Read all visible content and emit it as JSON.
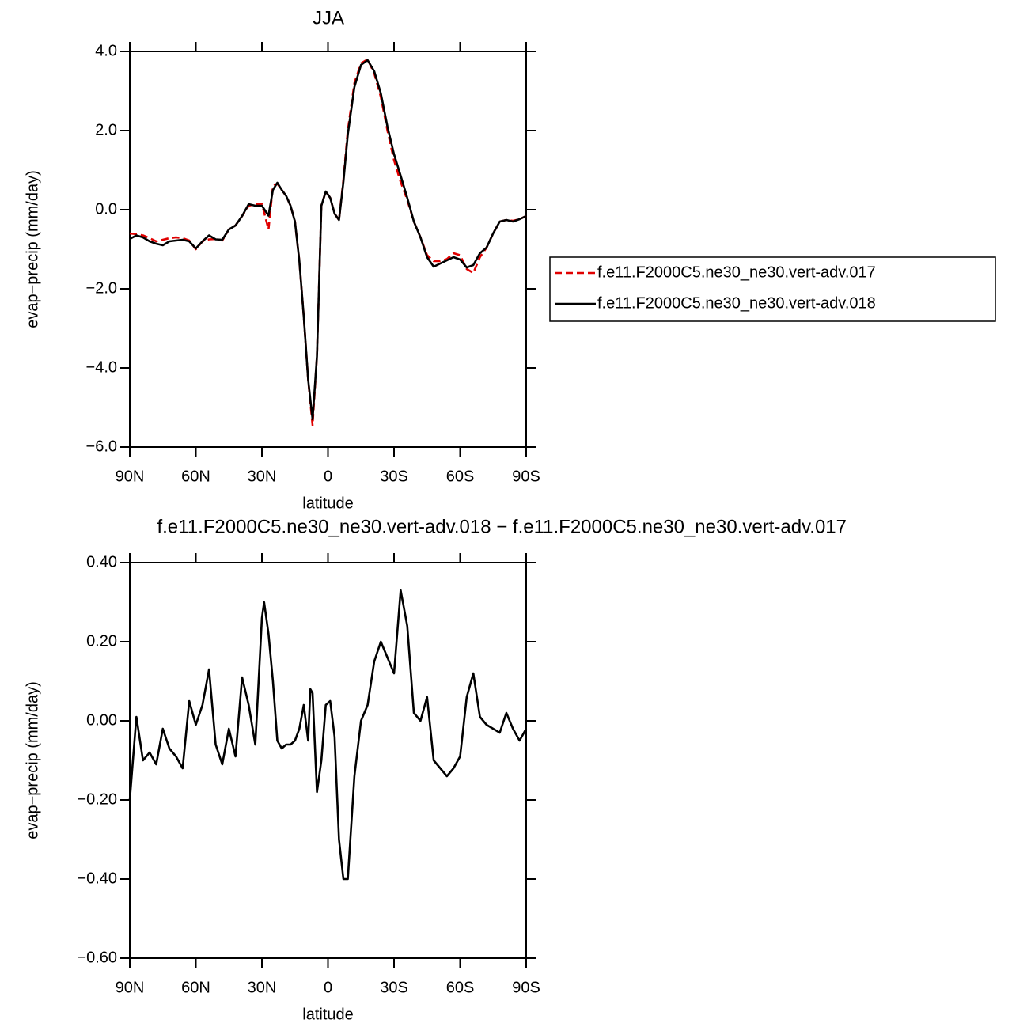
{
  "chart_data": [
    {
      "type": "line",
      "title": "JJA",
      "xlabel": "latitude",
      "ylabel": "evap−precip (mm/day)",
      "x": [
        90,
        87,
        84,
        81,
        78,
        75,
        72,
        69,
        66,
        63,
        60,
        57,
        54,
        51,
        48,
        45,
        42,
        39,
        36,
        33,
        30,
        27,
        25,
        23,
        21,
        19,
        17,
        15,
        13,
        11,
        9,
        7,
        5,
        3,
        1,
        -1,
        -3,
        -5,
        -7,
        -9,
        -12,
        -15,
        -18,
        -21,
        -24,
        -27,
        -30,
        -33,
        -36,
        -39,
        -42,
        -45,
        -48,
        -51,
        -54,
        -57,
        -60,
        -63,
        -66,
        -69,
        -72,
        -75,
        -78,
        -81,
        -84,
        -87,
        -90
      ],
      "xlim": [
        90,
        -90
      ],
      "xticks": [
        {
          "value": 90,
          "label": "90N"
        },
        {
          "value": 60,
          "label": "60N"
        },
        {
          "value": 30,
          "label": "30N"
        },
        0,
        {
          "value": -30,
          "label": "30S"
        },
        {
          "value": -60,
          "label": "60S"
        },
        {
          "value": -90,
          "label": "90S"
        }
      ],
      "ylim": [
        -6,
        4
      ],
      "yticks": [
        {
          "value": -6,
          "label": "−6.0"
        },
        {
          "value": -4,
          "label": "−4.0"
        },
        {
          "value": -2,
          "label": "−2.0"
        },
        {
          "value": 0,
          "label": "0.0"
        },
        {
          "value": 2,
          "label": "2.0"
        },
        {
          "value": 4,
          "label": "4.0"
        }
      ],
      "legend": "right",
      "series": [
        {
          "name": "f.e11.F2000C5.ne30_ne30.vert-adv.017",
          "color": "#e00000",
          "dash": true,
          "values": [
            -0.6,
            -0.62,
            -0.65,
            -0.72,
            -0.8,
            -0.76,
            -0.72,
            -0.7,
            -0.72,
            -0.78,
            -1.0,
            -0.8,
            -0.75,
            -0.74,
            -0.78,
            -0.5,
            -0.4,
            -0.16,
            0.1,
            0.14,
            0.15,
            -0.5,
            0.6,
            0.66,
            0.5,
            0.35,
            0.1,
            -0.3,
            -1.3,
            -2.7,
            -4.3,
            -5.45,
            -3.7,
            0.1,
            0.46,
            0.3,
            -0.1,
            -0.26,
            0.75,
            2.0,
            3.2,
            3.7,
            3.8,
            3.45,
            2.85,
            2.0,
            1.25,
            0.7,
            0.25,
            -0.3,
            -0.7,
            -1.15,
            -1.3,
            -1.3,
            -1.25,
            -1.1,
            -1.15,
            -1.5,
            -1.6,
            -1.2,
            -0.96,
            -0.6,
            -0.3,
            -0.26,
            -0.28,
            -0.24,
            -0.16
          ]
        },
        {
          "name": "f.e11.F2000C5.ne30_ne30.vert-adv.018",
          "color": "#000000",
          "dash": false,
          "values": [
            -0.74,
            -0.65,
            -0.7,
            -0.8,
            -0.86,
            -0.9,
            -0.8,
            -0.78,
            -0.76,
            -0.8,
            -0.98,
            -0.8,
            -0.65,
            -0.75,
            -0.76,
            -0.5,
            -0.4,
            -0.16,
            0.14,
            0.1,
            0.1,
            -0.15,
            0.5,
            0.68,
            0.5,
            0.35,
            0.1,
            -0.3,
            -1.3,
            -2.7,
            -4.3,
            -5.3,
            -3.7,
            0.1,
            0.46,
            0.3,
            -0.1,
            -0.26,
            0.7,
            1.9,
            3.1,
            3.66,
            3.78,
            3.5,
            2.94,
            2.1,
            1.4,
            0.86,
            0.3,
            -0.3,
            -0.7,
            -1.2,
            -1.44,
            -1.36,
            -1.28,
            -1.2,
            -1.26,
            -1.46,
            -1.4,
            -1.1,
            -0.96,
            -0.6,
            -0.3,
            -0.26,
            -0.3,
            -0.24,
            -0.16
          ]
        }
      ]
    },
    {
      "type": "line",
      "title": "f.e11.F2000C5.ne30_ne30.vert-adv.018 − f.e11.F2000C5.ne30_ne30.vert-adv.017",
      "xlabel": "latitude",
      "ylabel": "evap−precip (mm/day)",
      "x": [
        90,
        87,
        84,
        81,
        78,
        75,
        72,
        69,
        66,
        63,
        60,
        57,
        54,
        51,
        48,
        45,
        42,
        39,
        36,
        33,
        30,
        29,
        27,
        25,
        23,
        21,
        19,
        17,
        15,
        13,
        11,
        9,
        8,
        7,
        5,
        3,
        1,
        -1,
        -3,
        -5,
        -7,
        -9,
        -12,
        -15,
        -18,
        -21,
        -24,
        -27,
        -30,
        -33,
        -36,
        -39,
        -42,
        -45,
        -48,
        -51,
        -54,
        -57,
        -60,
        -63,
        -66,
        -69,
        -72,
        -75,
        -78,
        -81,
        -84,
        -87,
        -90
      ],
      "xlim": [
        90,
        -90
      ],
      "xticks": [
        {
          "value": 90,
          "label": "90N"
        },
        {
          "value": 60,
          "label": "60N"
        },
        {
          "value": 30,
          "label": "30N"
        },
        0,
        {
          "value": -30,
          "label": "30S"
        },
        {
          "value": -60,
          "label": "60S"
        },
        {
          "value": -90,
          "label": "90S"
        }
      ],
      "ylim": [
        -0.6,
        0.4
      ],
      "yticks": [
        {
          "value": -0.6,
          "label": "−0.60"
        },
        {
          "value": -0.4,
          "label": "−0.40"
        },
        {
          "value": -0.2,
          "label": "−0.20"
        },
        {
          "value": 0,
          "label": "0.00"
        },
        {
          "value": 0.2,
          "label": "0.20"
        },
        {
          "value": 0.4,
          "label": "0.40"
        }
      ],
      "series": [
        {
          "color": "#000000",
          "values": [
            -0.2,
            0.01,
            -0.1,
            -0.08,
            -0.11,
            -0.02,
            -0.07,
            -0.09,
            -0.12,
            0.05,
            -0.01,
            0.04,
            0.13,
            -0.06,
            -0.11,
            -0.02,
            -0.09,
            0.11,
            0.04,
            -0.06,
            0.26,
            0.3,
            0.22,
            0.1,
            -0.05,
            -0.07,
            -0.06,
            -0.06,
            -0.05,
            -0.02,
            0.04,
            -0.05,
            0.08,
            0.07,
            -0.18,
            -0.1,
            0.04,
            0.05,
            -0.04,
            -0.3,
            -0.4,
            -0.4,
            -0.14,
            0,
            0.04,
            0.15,
            0.2,
            0.16,
            0.12,
            0.33,
            0.24,
            0.02,
            0,
            0.06,
            -0.1,
            -0.12,
            -0.14,
            -0.12,
            -0.09,
            0.06,
            0.12,
            0.01,
            -0.01,
            -0.02,
            -0.03,
            0.02,
            -0.02,
            -0.05,
            -0.02
          ]
        }
      ]
    }
  ]
}
